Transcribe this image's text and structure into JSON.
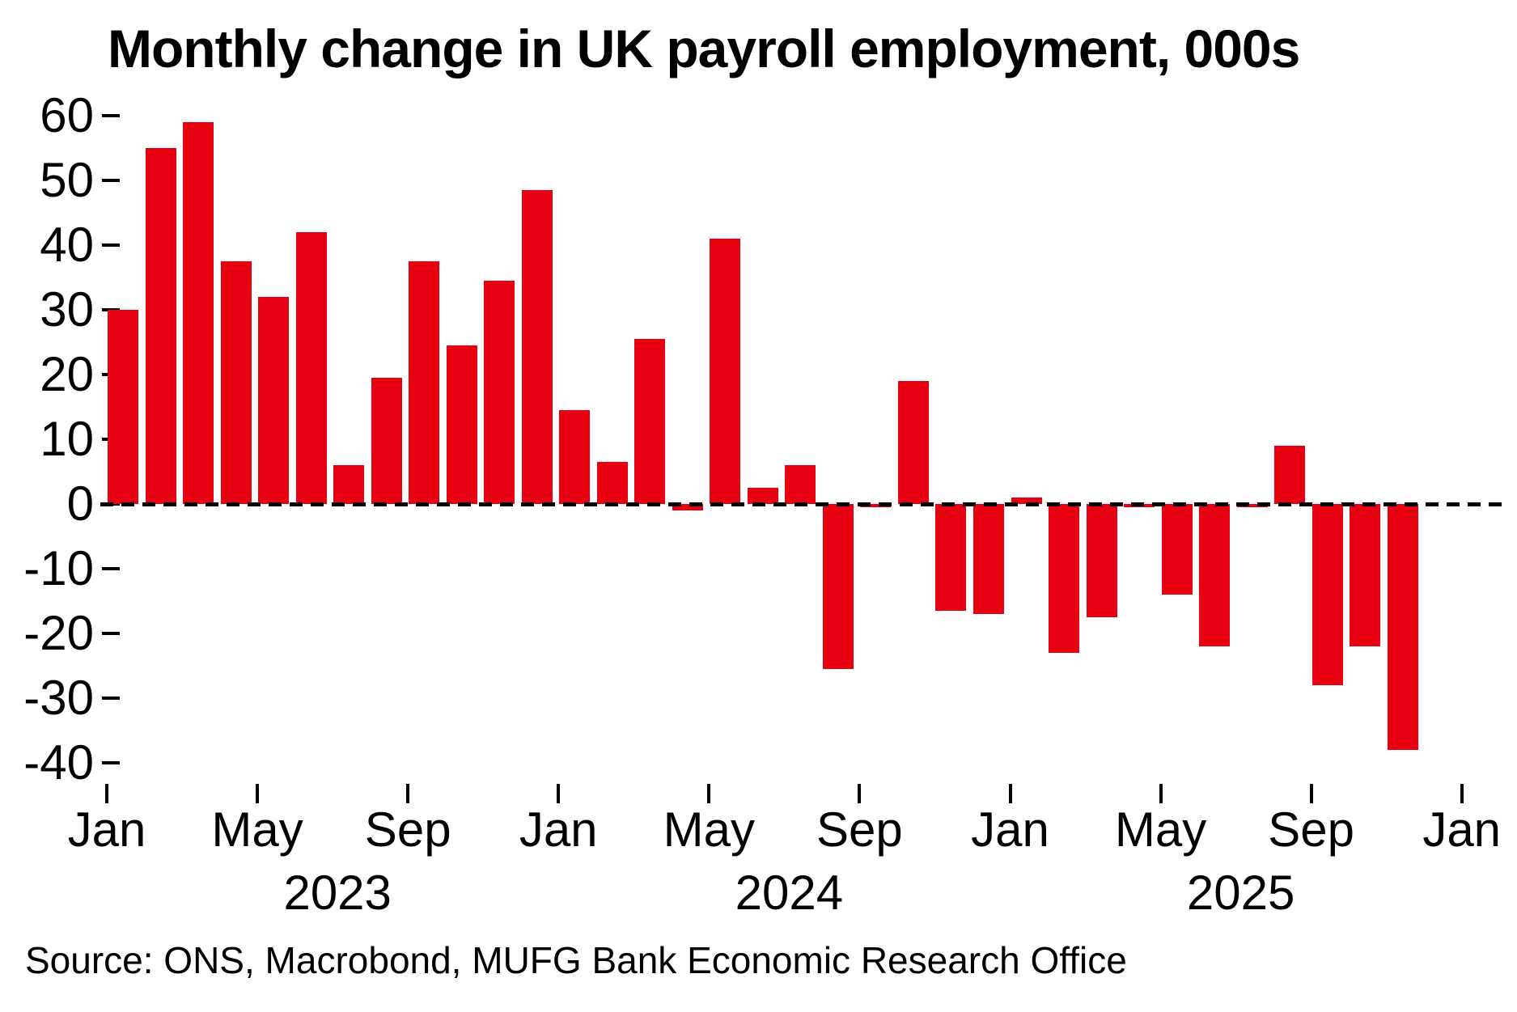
{
  "title": "Monthly change in UK payroll employment, 000s",
  "source": "Source: ONS, Macrobond, MUFG Bank Economic Research Office",
  "chart_data": {
    "type": "bar",
    "title": "Monthly change in UK payroll employment, 000s",
    "xlabel": "",
    "ylabel": "",
    "ylim": [
      -40,
      60
    ],
    "grid": false,
    "legend": null,
    "zero_line_style": "dashed",
    "bar_color": "#e60012",
    "axis_color": "#000000",
    "yticks": [
      60,
      50,
      40,
      30,
      20,
      10,
      0,
      -10,
      -20,
      -30,
      -40
    ],
    "categories": [
      "Jan 2023",
      "Feb 2023",
      "Mar 2023",
      "Apr 2023",
      "May 2023",
      "Jun 2023",
      "Jul 2023",
      "Aug 2023",
      "Sep 2023",
      "Oct 2023",
      "Nov 2023",
      "Dec 2023",
      "Jan 2024",
      "Feb 2024",
      "Mar 2024",
      "Apr 2024",
      "May 2024",
      "Jun 2024",
      "Jul 2024",
      "Aug 2024",
      "Sep 2024",
      "Oct 2024",
      "Nov 2024",
      "Dec 2024",
      "Jan 2025",
      "Feb 2025",
      "Mar 2025",
      "Apr 2025",
      "May 2025",
      "Jun 2025",
      "Jul 2025",
      "Aug 2025",
      "Sep 2025",
      "Oct 2025",
      "Nov 2025"
    ],
    "values": [
      30,
      55,
      59,
      37.5,
      32,
      42,
      6,
      19.5,
      37.5,
      24.5,
      34.5,
      48.5,
      14.5,
      6.5,
      25.5,
      -1,
      41,
      2.5,
      6,
      -25.5,
      -0.5,
      19,
      -16.5,
      -17,
      1,
      -23,
      -17.5,
      -0.5,
      -14,
      -22,
      -0.5,
      9,
      -28,
      -22,
      -38
    ],
    "xticks": [
      {
        "index": 0,
        "label": "Jan"
      },
      {
        "index": 4,
        "label": "May"
      },
      {
        "index": 8,
        "label": "Sep"
      },
      {
        "index": 12,
        "label": "Jan"
      },
      {
        "index": 16,
        "label": "May"
      },
      {
        "index": 20,
        "label": "Sep"
      },
      {
        "index": 24,
        "label": "Jan"
      },
      {
        "index": 28,
        "label": "May"
      },
      {
        "index": 32,
        "label": "Sep"
      },
      {
        "index": 36,
        "label": "Jan"
      }
    ],
    "year_labels": [
      {
        "label": "2023",
        "anchor_index": 0
      },
      {
        "label": "2024",
        "anchor_index": 12
      },
      {
        "label": "2025",
        "anchor_index": 24
      }
    ]
  }
}
